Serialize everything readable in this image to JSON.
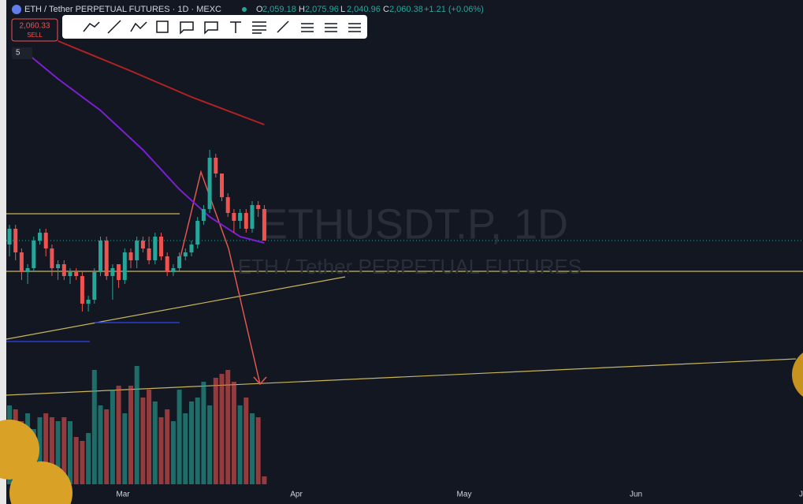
{
  "header": {
    "symbol": "ETH / Tether PERPETUAL FUTURES · 1D · MEXC",
    "o_label": "O",
    "o": "2,059.18",
    "h_label": "H",
    "h": "2,075.96",
    "l_label": "L",
    "l": "2,040.96",
    "c_label": "C",
    "c": "2,060.38",
    "change": "+1.21 (+0.06%)"
  },
  "sell": {
    "price": "2,060.33",
    "label": "SELL"
  },
  "indicators_toggle": "5",
  "watermark": {
    "ticker": "ETHUSDT.P, 1D",
    "name": "ETH / Tether PERPETUAL FUTURES"
  },
  "time_axis": [
    "Mar",
    "Apr",
    "May",
    "Jun",
    "Ju"
  ],
  "chart_data": {
    "type": "candlestick",
    "ylim": [
      1392,
      2670
    ],
    "up_color": "#26a69a",
    "down_color": "#ef5350",
    "vlim": [
      0,
      150
    ],
    "open": [
      2050,
      2090,
      2030,
      1980,
      1990,
      2060,
      2080,
      2040,
      1990,
      2000,
      1970,
      1980,
      1970,
      1900,
      1910,
      1980,
      2060,
      1970,
      2000,
      1960,
      2030,
      2010,
      2060,
      2040,
      2010,
      2070,
      2020,
      1980,
      1990,
      2020,
      2030,
      2050,
      2110,
      2140,
      2270,
      2230,
      2170,
      2130,
      2110,
      2130,
      2090,
      2150,
      2140
    ],
    "high": [
      2100,
      2100,
      2040,
      2000,
      2070,
      2090,
      2090,
      2050,
      2010,
      2010,
      1990,
      1990,
      1980,
      1920,
      1990,
      2070,
      2070,
      2000,
      2000,
      2040,
      2040,
      2070,
      2070,
      2070,
      2080,
      2080,
      2030,
      2000,
      2030,
      2040,
      2060,
      2120,
      2150,
      2290,
      2280,
      2230,
      2180,
      2140,
      2140,
      2140,
      2160,
      2160,
      2150
    ],
    "low": [
      2020,
      2010,
      1960,
      1950,
      1980,
      2050,
      2020,
      1970,
      1960,
      1960,
      1950,
      1960,
      1880,
      1880,
      1900,
      1970,
      1960,
      1910,
      1940,
      1950,
      1990,
      1990,
      2030,
      2000,
      2000,
      2010,
      1970,
      1970,
      1980,
      2010,
      2020,
      2040,
      2100,
      2130,
      2220,
      2160,
      2120,
      2080,
      2090,
      2080,
      2080,
      2120,
      2060
    ],
    "close": [
      2090,
      2030,
      1980,
      1990,
      2060,
      2080,
      2040,
      1990,
      2000,
      1970,
      1980,
      1970,
      1900,
      1910,
      1980,
      2060,
      1970,
      1990,
      1960,
      2030,
      2010,
      2060,
      2040,
      2010,
      2070,
      2020,
      1980,
      1990,
      2020,
      2030,
      2050,
      2110,
      2140,
      2270,
      2230,
      2170,
      2130,
      2110,
      2130,
      2090,
      2150,
      2140,
      2060
    ],
    "volume": [
      100,
      95,
      80,
      90,
      70,
      85,
      90,
      85,
      80,
      85,
      80,
      60,
      55,
      65,
      145,
      100,
      95,
      120,
      125,
      90,
      125,
      150,
      110,
      120,
      105,
      85,
      95,
      80,
      120,
      90,
      105,
      110,
      130,
      100,
      135,
      140,
      145,
      130,
      100,
      110,
      90,
      85,
      10
    ],
    "ma": [
      {
        "color": "#b22222",
        "x": [
          8,
          20,
          30,
          42
        ],
        "values": [
          2566,
          2490,
          2424,
          2354
        ]
      },
      {
        "color": "#7b1fd1",
        "x": [
          2,
          8,
          15,
          22,
          28,
          33,
          38,
          42
        ],
        "values": [
          2546,
          2470,
          2390,
          2290,
          2190,
          2120,
          2070,
          2054
        ]
      }
    ]
  }
}
